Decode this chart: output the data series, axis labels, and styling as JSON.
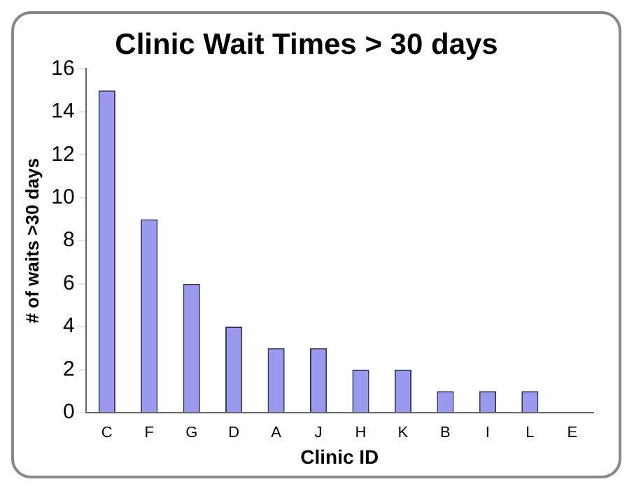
{
  "chart_data": {
    "type": "bar",
    "title": "Clinic Wait Times > 30 days",
    "xlabel": "Clinic ID",
    "ylabel": "# of waits >30 days",
    "categories": [
      "C",
      "F",
      "G",
      "D",
      "A",
      "J",
      "H",
      "K",
      "B",
      "I",
      "L",
      "E"
    ],
    "values": [
      15,
      9,
      6,
      4,
      3,
      3,
      2,
      2,
      1,
      1,
      1,
      0
    ],
    "color": "#9999ee",
    "ylim": [
      0,
      16
    ],
    "yticks": [
      0,
      2,
      4,
      6,
      8,
      10,
      12,
      14,
      16
    ],
    "grid": false,
    "legend": false
  }
}
